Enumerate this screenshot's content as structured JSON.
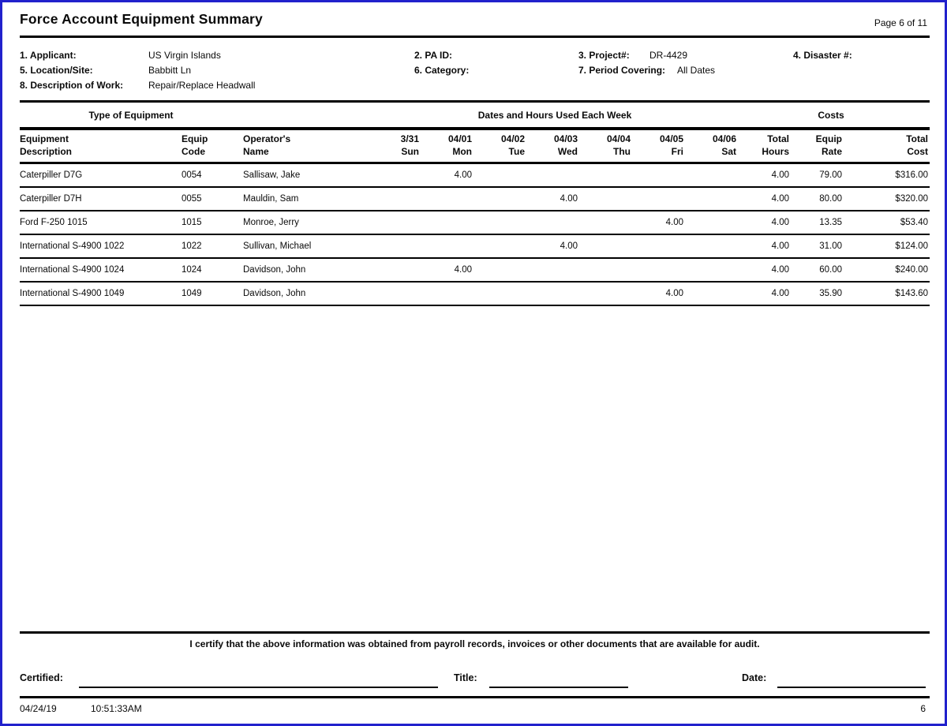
{
  "window": {
    "title": "Force Account Equipment Summary",
    "page_indicator": "Page 6 of 11"
  },
  "header": {
    "fields": [
      {
        "label": "1. Applicant:",
        "value": "US Virgin Islands"
      },
      {
        "label": "2. PA  ID:",
        "value": ""
      },
      {
        "label": "3. Project#:",
        "value": "DR-4429"
      },
      {
        "label": "4. Disaster #:",
        "value": ""
      },
      {
        "label": "5. Location/Site:",
        "value": "Babbitt Ln"
      },
      {
        "label": "6. Category:",
        "value": ""
      },
      {
        "label": "7. Period Covering:",
        "value": "All Dates"
      },
      {
        "label": "8. Description of Work:",
        "value": "Repair/Replace Headwall"
      }
    ]
  },
  "table": {
    "band_headers": {
      "equipment": "Type of Equipment",
      "dates": "Dates and Hours Used Each Week",
      "costs": "Costs"
    },
    "columns": [
      {
        "line1": "Equipment",
        "line2": "Description",
        "align": "left"
      },
      {
        "line1": "Equip",
        "line2": "Code",
        "align": "left"
      },
      {
        "line1": "Operator's",
        "line2": "Name",
        "align": "left"
      },
      {
        "line1": "3/31",
        "line2": "Sun",
        "align": "right"
      },
      {
        "line1": "04/01",
        "line2": "Mon",
        "align": "right"
      },
      {
        "line1": "04/02",
        "line2": "Tue",
        "align": "right"
      },
      {
        "line1": "04/03",
        "line2": "Wed",
        "align": "right"
      },
      {
        "line1": "04/04",
        "line2": "Thu",
        "align": "right"
      },
      {
        "line1": "04/05",
        "line2": "Fri",
        "align": "right"
      },
      {
        "line1": "04/06",
        "line2": "Sat",
        "align": "right"
      },
      {
        "line1": "Total",
        "line2": "Hours",
        "align": "right"
      },
      {
        "line1": "Equip",
        "line2": "Rate",
        "align": "right"
      },
      {
        "line1": "Total",
        "line2": "Cost",
        "align": "right"
      }
    ],
    "rows": [
      {
        "description": "Caterpiller D7G",
        "code": "0054",
        "operator": "Sallisaw, Jake",
        "day_hours": [
          "",
          "4.00",
          "",
          "",
          "",
          "",
          ""
        ],
        "total_hours": "4.00",
        "equip_rate": "79.00",
        "total_cost": "$316.00"
      },
      {
        "description": "Caterpiller D7H",
        "code": "0055",
        "operator": "Mauldin, Sam",
        "day_hours": [
          "",
          "",
          "",
          "4.00",
          "",
          "",
          ""
        ],
        "total_hours": "4.00",
        "equip_rate": "80.00",
        "total_cost": "$320.00"
      },
      {
        "description": "Ford F-250 1015",
        "code": "1015",
        "operator": "Monroe, Jerry",
        "day_hours": [
          "",
          "",
          "",
          "",
          "",
          "4.00",
          ""
        ],
        "total_hours": "4.00",
        "equip_rate": "13.35",
        "total_cost": "$53.40"
      },
      {
        "description": "International S-4900 1022",
        "code": "1022",
        "operator": "Sullivan, Michael",
        "day_hours": [
          "",
          "",
          "",
          "4.00",
          "",
          "",
          ""
        ],
        "total_hours": "4.00",
        "equip_rate": "31.00",
        "total_cost": "$124.00"
      },
      {
        "description": "International S-4900 1024",
        "code": "1024",
        "operator": "Davidson, John",
        "day_hours": [
          "",
          "4.00",
          "",
          "",
          "",
          "",
          ""
        ],
        "total_hours": "4.00",
        "equip_rate": "60.00",
        "total_cost": "$240.00"
      },
      {
        "description": "International S-4900 1049",
        "code": "1049",
        "operator": "Davidson, John",
        "day_hours": [
          "",
          "",
          "",
          "",
          "",
          "4.00",
          ""
        ],
        "total_hours": "4.00",
        "equip_rate": "35.90",
        "total_cost": "$143.60"
      }
    ]
  },
  "certification": {
    "statement": "I certify that the above information was obtained from payroll records, invoices or other documents that are available for audit."
  },
  "signature": {
    "certified_label": "Certified:",
    "title_label": "Title:",
    "date_label": "Date:"
  },
  "footer": {
    "date": "04/24/19",
    "time": "10:51:33AM",
    "page_number": "6"
  },
  "colors": {
    "border": "#2121cc",
    "text": "#0a0a0a",
    "rule": "#000000"
  }
}
